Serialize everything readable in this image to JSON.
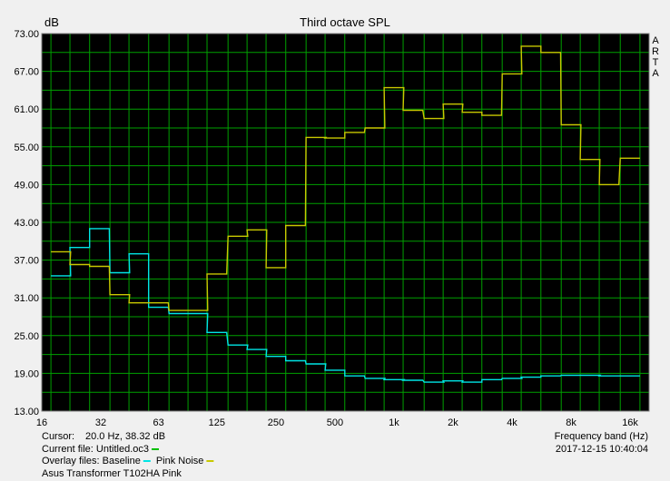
{
  "chart_data": {
    "type": "line",
    "title": "Third octave SPL",
    "ylabel": "dB",
    "xlabel": "Frequency band (Hz)",
    "brand": [
      "A",
      "R",
      "T",
      "A"
    ],
    "ylim": [
      13,
      73
    ],
    "y_ticks": [
      "73.00",
      "67.00",
      "61.00",
      "55.00",
      "49.00",
      "43.00",
      "37.00",
      "31.00",
      "25.00",
      "19.00",
      "13.00"
    ],
    "x_tick_labels": [
      {
        "f": 16,
        "label": "16"
      },
      {
        "f": 32,
        "label": "32"
      },
      {
        "f": 63,
        "label": "63"
      },
      {
        "f": 125,
        "label": "125"
      },
      {
        "f": 250,
        "label": "250"
      },
      {
        "f": 500,
        "label": "500"
      },
      {
        "f": 1000,
        "label": "1k"
      },
      {
        "f": 2000,
        "label": "2k"
      },
      {
        "f": 4000,
        "label": "4k"
      },
      {
        "f": 8000,
        "label": "8k"
      },
      {
        "f": 16000,
        "label": "16k"
      }
    ],
    "grid": true,
    "bands": [
      20,
      25,
      31.5,
      40,
      50,
      63,
      80,
      100,
      125,
      160,
      200,
      250,
      315,
      400,
      500,
      630,
      800,
      1000,
      1250,
      1600,
      2000,
      2500,
      3150,
      4000,
      5000,
      6300,
      8000,
      10000,
      12500,
      16000
    ],
    "series": [
      {
        "name": "Baseline",
        "color": "#00e5e5",
        "values": [
          34.5,
          39.0,
          42.0,
          35.0,
          38.0,
          29.5,
          28.5,
          28.5,
          25.5,
          23.5,
          22.8,
          21.7,
          21.0,
          20.5,
          19.5,
          18.6,
          18.2,
          18.0,
          17.9,
          17.6,
          17.8,
          17.6,
          18.0,
          18.2,
          18.4,
          18.6,
          18.7,
          18.7,
          18.6,
          18.6
        ]
      },
      {
        "name": "Pink Noise",
        "color": "#c8c800",
        "values": [
          38.32,
          36.3,
          36.0,
          31.5,
          30.2,
          30.2,
          29.0,
          29.0,
          34.8,
          40.8,
          41.8,
          35.8,
          42.5,
          56.5,
          56.4,
          57.3,
          58.0,
          64.4,
          60.8,
          59.5,
          61.8,
          60.5,
          60.0,
          66.6,
          71.0,
          70.0,
          58.5,
          53.0,
          49.0,
          53.2
        ]
      }
    ]
  },
  "footer": {
    "cursor_label": "Cursor:",
    "cursor_value": "20.0 Hz, 38.32 dB",
    "current_file": "Current file: Untitled.oc3",
    "current_file_color": "#00c000",
    "overlay_label": "Overlay files: Baseline",
    "overlay_second": "Pink Noise",
    "device": "Asus Transformer T102HA Pink",
    "timestamp": "2017-12-15  10:40:04"
  }
}
